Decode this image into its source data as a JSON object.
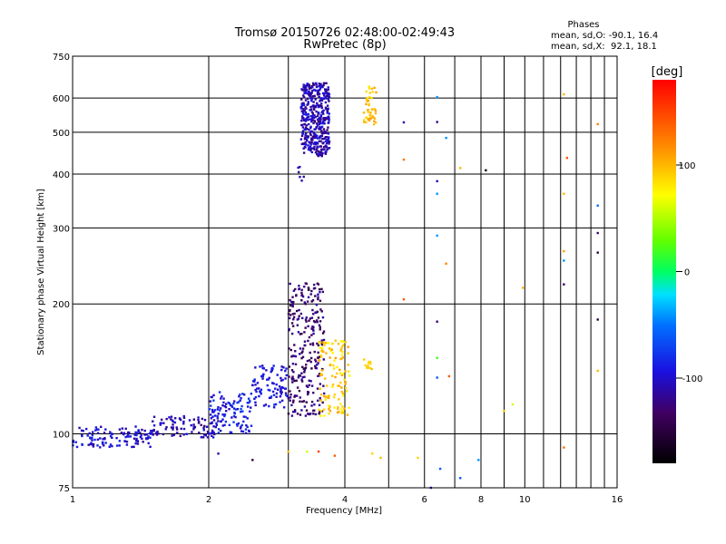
{
  "chart_data": {
    "type": "scatter",
    "title": "Tromsø 20150726 02:48:00-02:49:43",
    "subtitle": "RwPretec (8p)",
    "xlabel": "Frequency [MHz]",
    "ylabel": "Stationary phase Virtual Height [km]",
    "x_scale": "log",
    "y_scale": "log",
    "xlim": [
      1,
      16
    ],
    "ylim": [
      75,
      750
    ],
    "x_ticks": [
      1,
      2,
      4,
      6,
      8,
      10,
      16
    ],
    "y_ticks": [
      75,
      100,
      200,
      300,
      400,
      500,
      600,
      750
    ],
    "grid": true,
    "stats_header": "Phases",
    "stats": [
      "mean, sd,O: -90.1, 16.4",
      "mean, sd,X:  92.1, 18.1"
    ],
    "colorbar": {
      "label": "[deg]",
      "ticks": [
        100,
        0,
        -100
      ],
      "range": [
        -180,
        180
      ]
    },
    "clusters": [
      {
        "xr": [
          1.0,
          1.5
        ],
        "yr": [
          93,
          104
        ],
        "phase": [
          -120,
          -80
        ],
        "n": 120
      },
      {
        "xr": [
          1.5,
          2.1
        ],
        "yr": [
          98,
          110
        ],
        "phase": [
          -130,
          -90
        ],
        "n": 90
      },
      {
        "xr": [
          2.0,
          2.5
        ],
        "yr": [
          100,
          125
        ],
        "phase": [
          -110,
          -70
        ],
        "n": 110
      },
      {
        "xr": [
          2.5,
          3.0
        ],
        "yr": [
          115,
          145
        ],
        "phase": [
          -110,
          -80
        ],
        "n": 90
      },
      {
        "xr": [
          3.0,
          3.6
        ],
        "yr": [
          110,
          225
        ],
        "phase": [
          -150,
          -110
        ],
        "n": 260
      },
      {
        "xr": [
          3.5,
          4.1
        ],
        "yr": [
          110,
          165
        ],
        "phase": [
          70,
          110
        ],
        "n": 120
      },
      {
        "xr": [
          3.2,
          3.7
        ],
        "yr": [
          440,
          650
        ],
        "phase": [
          -130,
          -90
        ],
        "n": 420
      },
      {
        "xr": [
          4.4,
          4.7
        ],
        "yr": [
          520,
          640
        ],
        "phase": [
          80,
          110
        ],
        "n": 45
      },
      {
        "xr": [
          3.15,
          3.25
        ],
        "yr": [
          380,
          420
        ],
        "phase": [
          -120,
          -100
        ],
        "n": 6
      },
      {
        "xr": [
          4.4,
          4.6
        ],
        "yr": [
          140,
          150
        ],
        "phase": [
          85,
          100
        ],
        "n": 14
      }
    ],
    "points": [
      {
        "x": 2.1,
        "y": 90,
        "phase": -110
      },
      {
        "x": 2.5,
        "y": 87,
        "phase": -150
      },
      {
        "x": 3.0,
        "y": 91,
        "phase": 95
      },
      {
        "x": 3.3,
        "y": 91,
        "phase": 60
      },
      {
        "x": 3.5,
        "y": 91,
        "phase": 150
      },
      {
        "x": 3.8,
        "y": 89,
        "phase": 140
      },
      {
        "x": 4.6,
        "y": 90,
        "phase": 90
      },
      {
        "x": 4.8,
        "y": 88,
        "phase": 100
      },
      {
        "x": 5.8,
        "y": 88,
        "phase": 90
      },
      {
        "x": 5.4,
        "y": 205,
        "phase": 140
      },
      {
        "x": 5.4,
        "y": 432,
        "phase": 130
      },
      {
        "x": 5.4,
        "y": 527,
        "phase": -110
      },
      {
        "x": 6.4,
        "y": 603,
        "phase": -40
      },
      {
        "x": 6.4,
        "y": 528,
        "phase": -120
      },
      {
        "x": 6.4,
        "y": 385,
        "phase": -110
      },
      {
        "x": 6.4,
        "y": 360,
        "phase": -40
      },
      {
        "x": 6.4,
        "y": 288,
        "phase": -40
      },
      {
        "x": 6.4,
        "y": 182,
        "phase": -130
      },
      {
        "x": 6.4,
        "y": 150,
        "phase": 20
      },
      {
        "x": 6.4,
        "y": 135,
        "phase": -60
      },
      {
        "x": 6.5,
        "y": 83,
        "phase": -60
      },
      {
        "x": 6.2,
        "y": 75,
        "phase": -100
      },
      {
        "x": 6.7,
        "y": 485,
        "phase": -40
      },
      {
        "x": 6.7,
        "y": 248,
        "phase": 120
      },
      {
        "x": 6.8,
        "y": 136,
        "phase": 140
      },
      {
        "x": 7.2,
        "y": 413,
        "phase": 100
      },
      {
        "x": 7.2,
        "y": 79,
        "phase": -60
      },
      {
        "x": 8.2,
        "y": 408,
        "phase": -170
      },
      {
        "x": 7.9,
        "y": 87,
        "phase": -40
      },
      {
        "x": 9.4,
        "y": 117,
        "phase": 60
      },
      {
        "x": 9.0,
        "y": 113,
        "phase": 90
      },
      {
        "x": 9.9,
        "y": 218,
        "phase": 100
      },
      {
        "x": 12.2,
        "y": 612,
        "phase": 100
      },
      {
        "x": 12.2,
        "y": 360,
        "phase": 100
      },
      {
        "x": 12.2,
        "y": 265,
        "phase": 110
      },
      {
        "x": 12.2,
        "y": 252,
        "phase": -40
      },
      {
        "x": 12.2,
        "y": 222,
        "phase": -130
      },
      {
        "x": 12.2,
        "y": 93,
        "phase": 130
      },
      {
        "x": 12.4,
        "y": 436,
        "phase": 140
      },
      {
        "x": 14.5,
        "y": 522,
        "phase": 120
      },
      {
        "x": 14.5,
        "y": 338,
        "phase": -50
      },
      {
        "x": 14.5,
        "y": 292,
        "phase": -130
      },
      {
        "x": 14.5,
        "y": 263,
        "phase": -150
      },
      {
        "x": 14.5,
        "y": 184,
        "phase": -150
      },
      {
        "x": 14.5,
        "y": 140,
        "phase": 100
      }
    ]
  }
}
